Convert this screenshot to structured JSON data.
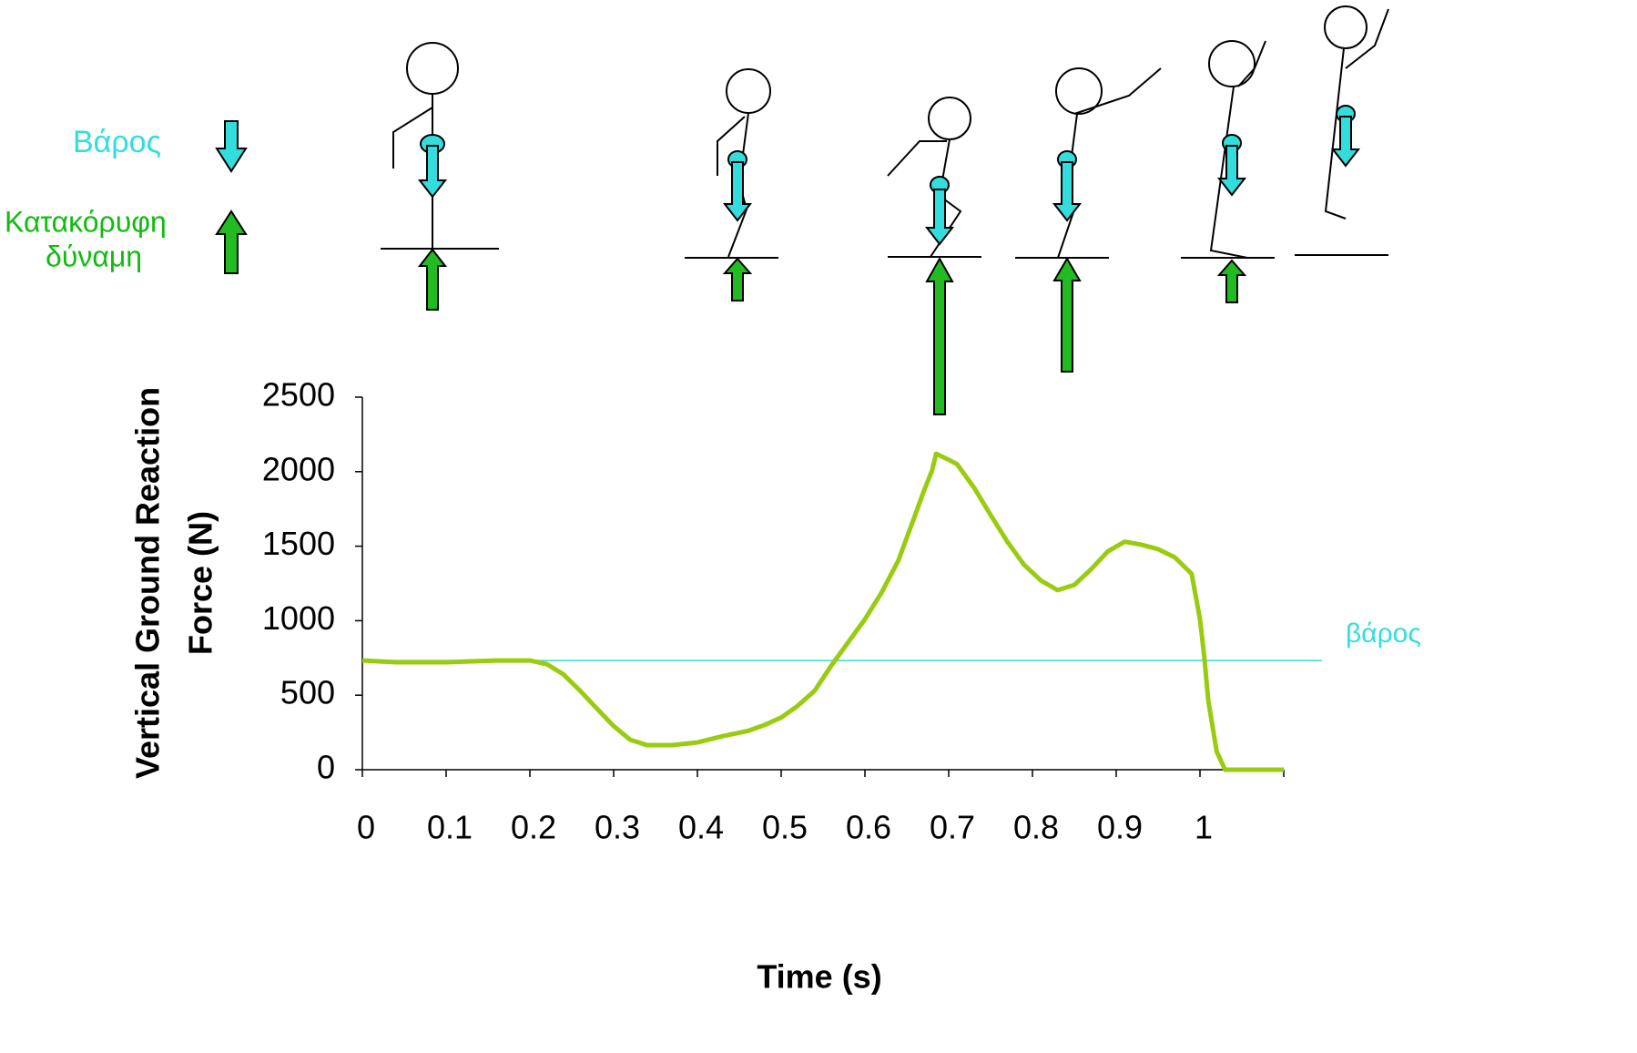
{
  "chart_data": {
    "type": "line",
    "y_label": [
      "Vertical Ground Reaction",
      "Force (N)"
    ],
    "x_label": "Time (s)",
    "x": [
      0,
      0.04,
      0.1,
      0.16,
      0.2,
      0.22,
      0.24,
      0.26,
      0.28,
      0.3,
      0.32,
      0.34,
      0.37,
      0.4,
      0.43,
      0.46,
      0.48,
      0.5,
      0.52,
      0.54,
      0.56,
      0.58,
      0.6,
      0.62,
      0.64,
      0.66,
      0.67,
      0.68,
      0.685,
      0.7,
      0.71,
      0.73,
      0.75,
      0.77,
      0.79,
      0.81,
      0.83,
      0.85,
      0.87,
      0.89,
      0.91,
      0.93,
      0.95,
      0.97,
      0.99,
      1.0,
      1.005,
      1.01,
      1.02,
      1.03,
      1.1
    ],
    "values": [
      733,
      721,
      721,
      733,
      733,
      709,
      640,
      530,
      410,
      293,
      200,
      165,
      165,
      183,
      225,
      260,
      300,
      350,
      430,
      530,
      700,
      855,
      1010,
      1190,
      1405,
      1710,
      1865,
      2005,
      2120,
      2080,
      2050,
      1895,
      1710,
      1530,
      1375,
      1270,
      1205,
      1240,
      1345,
      1465,
      1530,
      1510,
      1480,
      1425,
      1315,
      1010,
      765,
      460,
      120,
      0,
      0
    ],
    "color": "#99cc11",
    "xlim": [
      0,
      1.1
    ],
    "xticks": [
      0,
      0.1,
      0.2,
      0.3,
      0.4,
      0.5,
      0.6,
      0.7,
      0.8,
      0.9,
      1
    ],
    "ylim": [
      0,
      2500
    ],
    "yticks": [
      0,
      500,
      1000,
      1500,
      2000,
      2500
    ],
    "weight_line": {
      "value": 733,
      "label": "βάρος",
      "color": "#33dddd"
    },
    "figure_legend": {
      "weight": "Βάρος",
      "weight_color": "#33dddd",
      "force": [
        "Κατακόρυφη",
        "δύναμη"
      ],
      "force_color": "#11bb11"
    }
  }
}
